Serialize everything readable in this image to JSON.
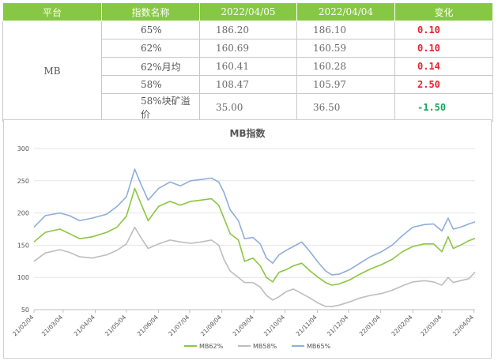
{
  "table": {
    "headers": [
      "平台",
      "指数名称",
      "2022/04/05",
      "2022/04/04",
      "变化"
    ],
    "platform": "MB",
    "rows": [
      {
        "name": "65%",
        "v1": "186.20",
        "v2": "186.10",
        "change": "0.10",
        "dir": "up"
      },
      {
        "name": "62%",
        "v1": "160.69",
        "v2": "160.59",
        "change": "0.10",
        "dir": "up"
      },
      {
        "name": "62%月均",
        "v1": "160.41",
        "v2": "160.28",
        "change": "0.14",
        "dir": "up"
      },
      {
        "name": "58%",
        "v1": "108.47",
        "v2": "105.97",
        "change": "2.50",
        "dir": "up"
      },
      {
        "name": "58%块矿溢价",
        "v1": "35.00",
        "v2": "36.50",
        "change": "-1.50",
        "dir": "down"
      }
    ]
  },
  "chart_data": {
    "type": "line",
    "title": "MB指数",
    "xlabel": "",
    "ylabel": "",
    "ylim": [
      50,
      300
    ],
    "yticks": [
      50,
      100,
      150,
      200,
      250,
      300
    ],
    "x_range": [
      "2021-02-04",
      "2022-04-05"
    ],
    "x_tick_labels": [
      "21/02/04",
      "21/03/04",
      "21/04/04",
      "21/05/04",
      "21/06/04",
      "21/07/04",
      "21/08/04",
      "21/09/04",
      "21/10/04",
      "21/11/04",
      "21/12/04",
      "22/01/04",
      "22/02/04",
      "22/03/04",
      "22/04/04"
    ],
    "x_tick_dates": [
      "2021-02-04",
      "2021-03-04",
      "2021-04-04",
      "2021-05-04",
      "2021-06-04",
      "2021-07-04",
      "2021-08-04",
      "2021-09-04",
      "2021-10-04",
      "2021-11-04",
      "2021-12-04",
      "2022-01-04",
      "2022-02-04",
      "2022-03-04",
      "2022-04-04"
    ],
    "grid": {
      "horizontal": true,
      "vertical": false
    },
    "legend_position": "bottom",
    "series": [
      {
        "name": "MB62%",
        "color": "#8cc63f",
        "points": [
          [
            "2021-02-04",
            155
          ],
          [
            "2021-02-15",
            170
          ],
          [
            "2021-03-01",
            175
          ],
          [
            "2021-03-10",
            168
          ],
          [
            "2021-03-20",
            160
          ],
          [
            "2021-04-01",
            163
          ],
          [
            "2021-04-15",
            170
          ],
          [
            "2021-04-25",
            178
          ],
          [
            "2021-05-04",
            195
          ],
          [
            "2021-05-12",
            238
          ],
          [
            "2021-05-18",
            215
          ],
          [
            "2021-05-25",
            188
          ],
          [
            "2021-06-04",
            210
          ],
          [
            "2021-06-15",
            218
          ],
          [
            "2021-06-25",
            212
          ],
          [
            "2021-07-05",
            218
          ],
          [
            "2021-07-15",
            220
          ],
          [
            "2021-07-25",
            222
          ],
          [
            "2021-08-01",
            212
          ],
          [
            "2021-08-06",
            192
          ],
          [
            "2021-08-12",
            168
          ],
          [
            "2021-08-20",
            158
          ],
          [
            "2021-08-26",
            125
          ],
          [
            "2021-09-03",
            130
          ],
          [
            "2021-09-10",
            118
          ],
          [
            "2021-09-16",
            100
          ],
          [
            "2021-09-22",
            93
          ],
          [
            "2021-09-28",
            108
          ],
          [
            "2021-10-05",
            112
          ],
          [
            "2021-10-12",
            118
          ],
          [
            "2021-10-20",
            122
          ],
          [
            "2021-10-28",
            110
          ],
          [
            "2021-11-05",
            100
          ],
          [
            "2021-11-12",
            92
          ],
          [
            "2021-11-18",
            88
          ],
          [
            "2021-11-25",
            90
          ],
          [
            "2021-12-05",
            96
          ],
          [
            "2021-12-15",
            105
          ],
          [
            "2021-12-25",
            113
          ],
          [
            "2022-01-05",
            120
          ],
          [
            "2022-01-15",
            128
          ],
          [
            "2022-01-25",
            140
          ],
          [
            "2022-02-04",
            148
          ],
          [
            "2022-02-15",
            152
          ],
          [
            "2022-02-24",
            152
          ],
          [
            "2022-03-04",
            140
          ],
          [
            "2022-03-10",
            163
          ],
          [
            "2022-03-15",
            145
          ],
          [
            "2022-03-22",
            150
          ],
          [
            "2022-03-30",
            157
          ],
          [
            "2022-04-05",
            160.69
          ]
        ]
      },
      {
        "name": "MB58%",
        "color": "#bdbdbd",
        "points": [
          [
            "2021-02-04",
            125
          ],
          [
            "2021-02-15",
            138
          ],
          [
            "2021-03-01",
            143
          ],
          [
            "2021-03-10",
            139
          ],
          [
            "2021-03-20",
            132
          ],
          [
            "2021-04-01",
            130
          ],
          [
            "2021-04-15",
            135
          ],
          [
            "2021-04-25",
            142
          ],
          [
            "2021-05-04",
            152
          ],
          [
            "2021-05-12",
            178
          ],
          [
            "2021-05-18",
            162
          ],
          [
            "2021-05-25",
            145
          ],
          [
            "2021-06-04",
            152
          ],
          [
            "2021-06-15",
            158
          ],
          [
            "2021-06-25",
            155
          ],
          [
            "2021-07-05",
            153
          ],
          [
            "2021-07-15",
            155
          ],
          [
            "2021-07-25",
            158
          ],
          [
            "2021-08-01",
            150
          ],
          [
            "2021-08-06",
            128
          ],
          [
            "2021-08-12",
            110
          ],
          [
            "2021-08-20",
            100
          ],
          [
            "2021-08-26",
            92
          ],
          [
            "2021-09-03",
            92
          ],
          [
            "2021-09-10",
            85
          ],
          [
            "2021-09-16",
            72
          ],
          [
            "2021-09-22",
            65
          ],
          [
            "2021-09-28",
            70
          ],
          [
            "2021-10-05",
            78
          ],
          [
            "2021-10-12",
            82
          ],
          [
            "2021-10-20",
            75
          ],
          [
            "2021-10-28",
            68
          ],
          [
            "2021-11-05",
            60
          ],
          [
            "2021-11-12",
            55
          ],
          [
            "2021-11-18",
            55
          ],
          [
            "2021-11-25",
            57
          ],
          [
            "2021-12-05",
            62
          ],
          [
            "2021-12-15",
            68
          ],
          [
            "2021-12-25",
            72
          ],
          [
            "2022-01-05",
            75
          ],
          [
            "2022-01-15",
            80
          ],
          [
            "2022-01-25",
            87
          ],
          [
            "2022-02-04",
            93
          ],
          [
            "2022-02-15",
            95
          ],
          [
            "2022-02-24",
            93
          ],
          [
            "2022-03-04",
            88
          ],
          [
            "2022-03-10",
            100
          ],
          [
            "2022-03-15",
            92
          ],
          [
            "2022-03-22",
            95
          ],
          [
            "2022-03-30",
            98
          ],
          [
            "2022-04-05",
            108.47
          ]
        ]
      },
      {
        "name": "MB65%",
        "color": "#8eaedb",
        "points": [
          [
            "2021-02-04",
            178
          ],
          [
            "2021-02-15",
            196
          ],
          [
            "2021-03-01",
            200
          ],
          [
            "2021-03-10",
            196
          ],
          [
            "2021-03-20",
            188
          ],
          [
            "2021-04-01",
            192
          ],
          [
            "2021-04-15",
            198
          ],
          [
            "2021-04-25",
            210
          ],
          [
            "2021-05-04",
            225
          ],
          [
            "2021-05-12",
            268
          ],
          [
            "2021-05-18",
            245
          ],
          [
            "2021-05-25",
            220
          ],
          [
            "2021-06-04",
            238
          ],
          [
            "2021-06-15",
            248
          ],
          [
            "2021-06-25",
            242
          ],
          [
            "2021-07-05",
            250
          ],
          [
            "2021-07-15",
            252
          ],
          [
            "2021-07-25",
            254
          ],
          [
            "2021-08-01",
            248
          ],
          [
            "2021-08-06",
            232
          ],
          [
            "2021-08-12",
            205
          ],
          [
            "2021-08-20",
            188
          ],
          [
            "2021-08-26",
            160
          ],
          [
            "2021-09-03",
            162
          ],
          [
            "2021-09-10",
            152
          ],
          [
            "2021-09-16",
            130
          ],
          [
            "2021-09-22",
            122
          ],
          [
            "2021-09-28",
            135
          ],
          [
            "2021-10-05",
            142
          ],
          [
            "2021-10-12",
            148
          ],
          [
            "2021-10-20",
            155
          ],
          [
            "2021-10-28",
            140
          ],
          [
            "2021-11-05",
            123
          ],
          [
            "2021-11-12",
            110
          ],
          [
            "2021-11-18",
            104
          ],
          [
            "2021-11-25",
            105
          ],
          [
            "2021-12-05",
            112
          ],
          [
            "2021-12-15",
            122
          ],
          [
            "2021-12-25",
            132
          ],
          [
            "2022-01-05",
            140
          ],
          [
            "2022-01-15",
            150
          ],
          [
            "2022-01-25",
            165
          ],
          [
            "2022-02-04",
            178
          ],
          [
            "2022-02-15",
            182
          ],
          [
            "2022-02-24",
            183
          ],
          [
            "2022-03-04",
            172
          ],
          [
            "2022-03-10",
            192
          ],
          [
            "2022-03-15",
            175
          ],
          [
            "2022-03-22",
            178
          ],
          [
            "2022-03-30",
            183
          ],
          [
            "2022-04-05",
            186.2
          ]
        ]
      }
    ]
  }
}
